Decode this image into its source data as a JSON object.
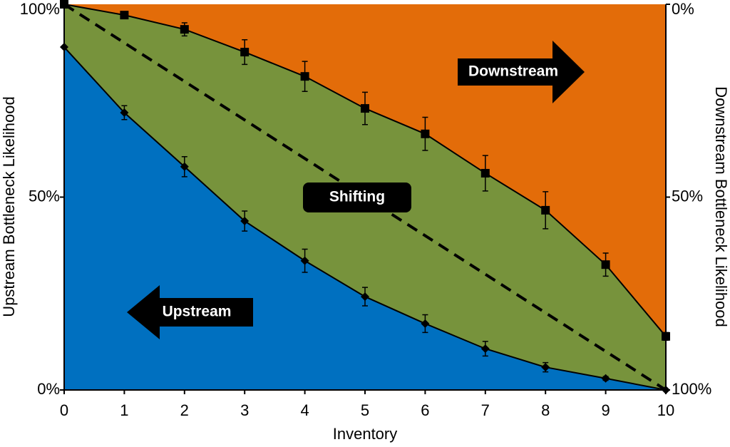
{
  "chart_data": {
    "type": "area",
    "x_label": "Inventory",
    "y_label": "Upstream Bottleneck Likelihood",
    "y2_label": "Downstream Bottleneck Likelihood",
    "x": [
      0,
      1,
      2,
      3,
      4,
      5,
      6,
      7,
      8,
      9,
      10
    ],
    "xlim": [
      0,
      10
    ],
    "xticks": [
      0,
      1,
      2,
      3,
      4,
      5,
      6,
      7,
      8,
      9,
      10
    ],
    "ylim": [
      0,
      100
    ],
    "yticks": [
      {
        "value": 0,
        "label": "0%"
      },
      {
        "value": 50,
        "label": "50%"
      },
      {
        "value": 100,
        "label": "100%"
      }
    ],
    "y2lim": [
      100,
      0
    ],
    "y2ticks": [
      {
        "value": 0,
        "label": "0%"
      },
      {
        "value": 50,
        "label": "50%"
      },
      {
        "value": 100,
        "label": "100%"
      }
    ],
    "background_color": "#e36c09",
    "series": [
      {
        "color": "#77933c",
        "marker": "square",
        "values": [
          100,
          97.2,
          93.5,
          87.6,
          81.3,
          73.0,
          66.4,
          56.2,
          46.6,
          32.5,
          13.9
        ],
        "errors": [
          0,
          0.8,
          1.7,
          3.2,
          3.9,
          4.2,
          4.3,
          4.6,
          4.8,
          3.0,
          1.0
        ]
      },
      {
        "color": "#0070c0",
        "marker": "diamond",
        "values": [
          88.9,
          71.9,
          57.9,
          43.8,
          33.5,
          24.2,
          17.2,
          10.7,
          5.9,
          3.0,
          0
        ],
        "errors": [
          0,
          1.8,
          2.6,
          2.6,
          3.0,
          2.4,
          2.3,
          1.9,
          1.2,
          0.5,
          0
        ]
      }
    ],
    "reference_line": {
      "x": [
        0,
        10
      ],
      "values": [
        100,
        0
      ]
    },
    "annotations": [
      "Downstream",
      "Shifting",
      "Upstream"
    ]
  }
}
